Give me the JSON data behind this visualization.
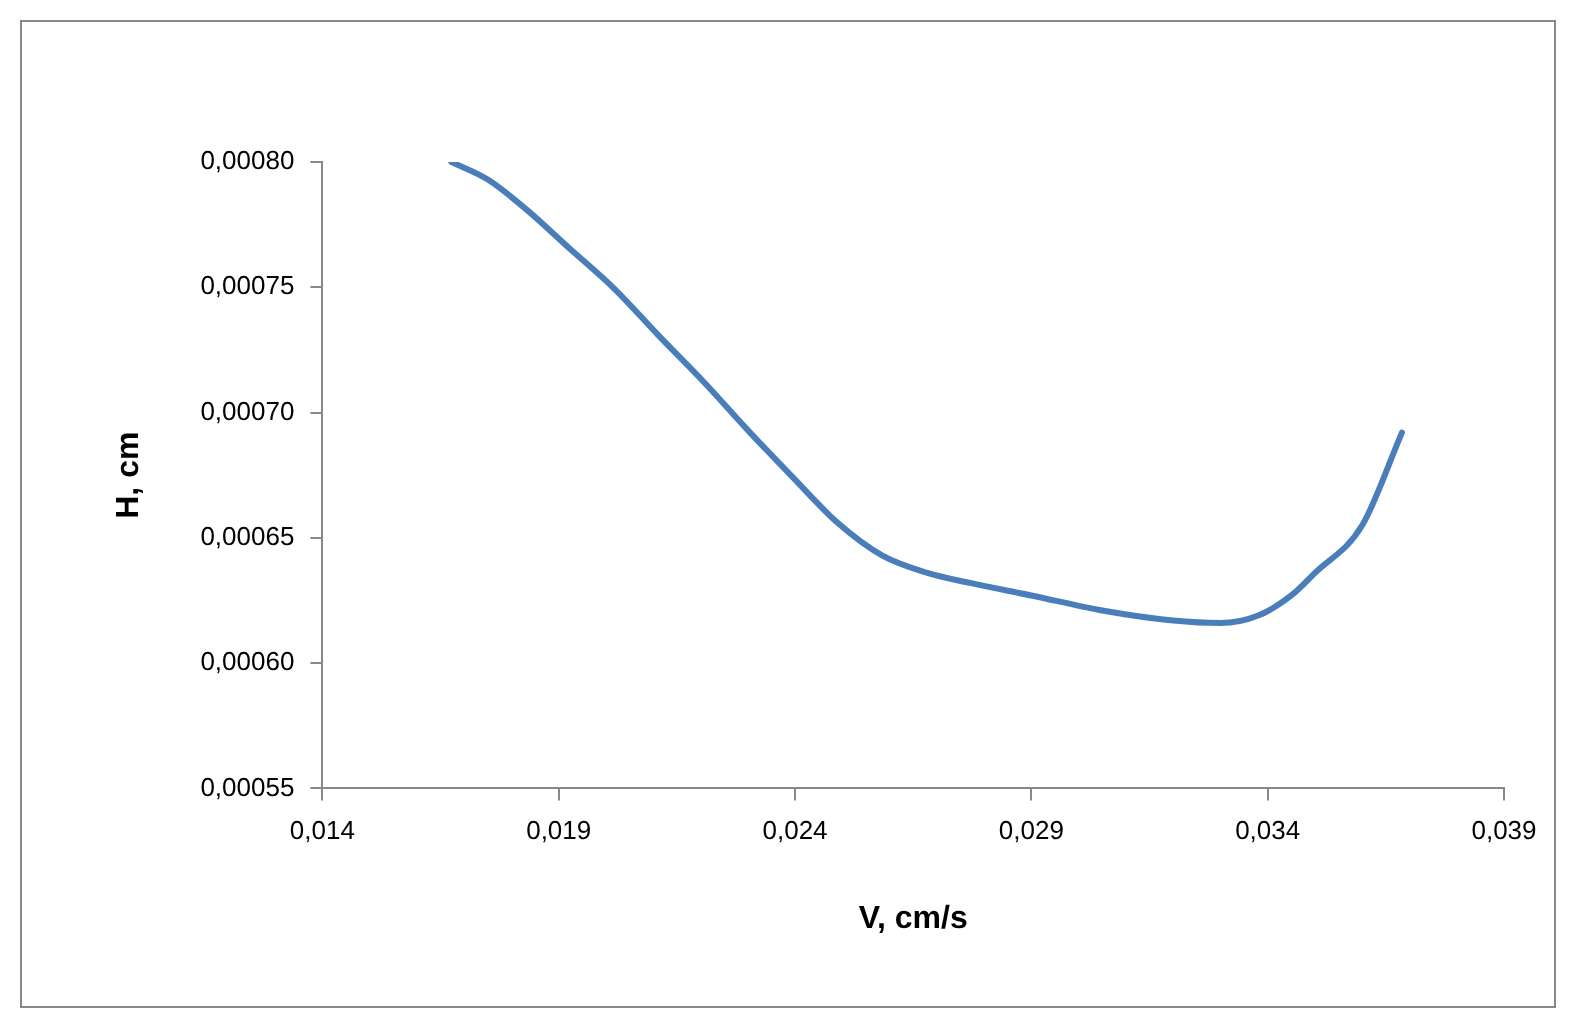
{
  "chart_data": {
    "type": "line",
    "xlabel": "V, cm/s",
    "ylabel": "H, cm",
    "series": [
      {
        "color": "#4a7ebb",
        "x": [
          0.01673,
          0.0175,
          0.01832,
          0.0192,
          0.0202,
          0.0211,
          0.02208,
          0.023,
          0.02396,
          0.0249,
          0.02584,
          0.0268,
          0.0277,
          0.029,
          0.0305,
          0.032,
          0.033,
          0.0338,
          0.0345,
          0.035,
          0.036,
          0.03684
        ],
        "values": [
          0.0008,
          0.000793,
          0.000781,
          0.000766,
          0.000749,
          0.000731,
          0.000712,
          0.000693,
          0.000674,
          0.000656,
          0.000643,
          0.000636,
          0.000632,
          0.000627,
          0.000621,
          0.000617,
          0.000616,
          0.000619,
          0.000627,
          0.000636,
          0.000655,
          0.000692
        ]
      }
    ],
    "xlim": [
      0.014,
      0.039
    ],
    "xticks": [
      {
        "value": 0.014,
        "label": "0,014"
      },
      {
        "value": 0.019,
        "label": "0,019"
      },
      {
        "value": 0.024,
        "label": "0,024"
      },
      {
        "value": 0.029,
        "label": "0,029"
      },
      {
        "value": 0.034,
        "label": "0,034"
      },
      {
        "value": 0.039,
        "label": "0,039"
      }
    ],
    "ylim": [
      0.00055,
      0.0008
    ],
    "yticks": [
      {
        "value": 0.00055,
        "label": "0,00055"
      },
      {
        "value": 0.0006,
        "label": "0,00060"
      },
      {
        "value": 0.00065,
        "label": "0,00065"
      },
      {
        "value": 0.0007,
        "label": "0,00070"
      },
      {
        "value": 0.00075,
        "label": "0,00075"
      },
      {
        "value": 0.0008,
        "label": "0,00080"
      }
    ],
    "grid": false,
    "legend": false,
    "marker": "none",
    "line_style": "solid"
  }
}
